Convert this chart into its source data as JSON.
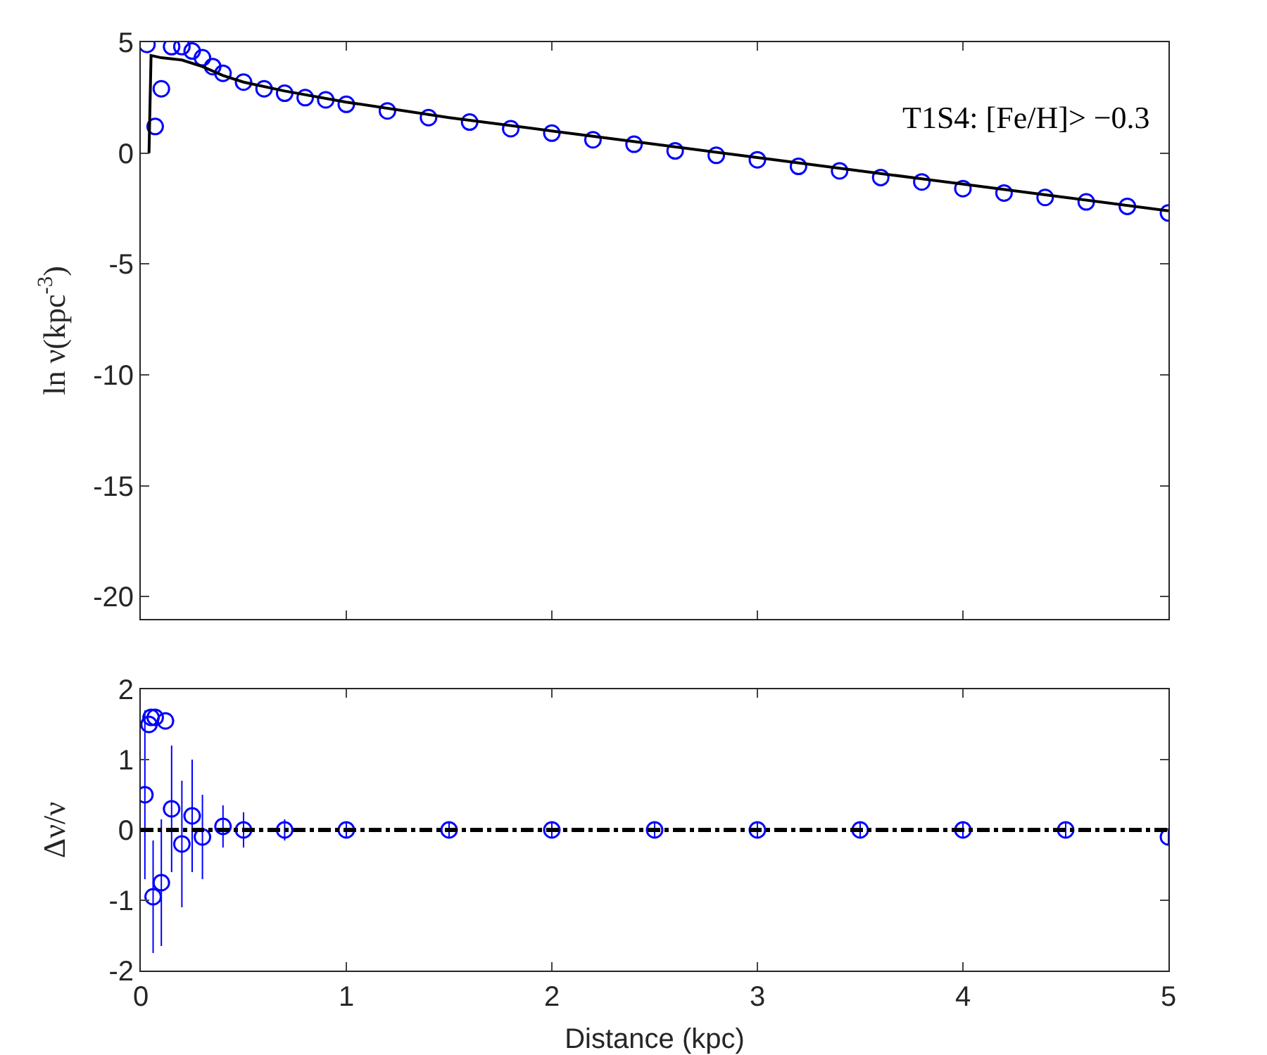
{
  "chart_data": [
    {
      "type": "scatter",
      "ylabel": "ln ν(kpc$^{-3}$)",
      "annotations": [
        "T1S4: [Fe/H]> −0.3"
      ],
      "xlim": [
        0,
        5
      ],
      "xticks": [
        0,
        1,
        2,
        3,
        4,
        5
      ],
      "ylim": [
        -21,
        5
      ],
      "yticks": [
        -20,
        -15,
        -10,
        -5,
        0,
        5
      ],
      "tick_labels": "y",
      "marker": "circle",
      "series": [
        {
          "color": "#0000ff",
          "x": [
            0.03,
            0.07,
            0.1,
            0.15,
            0.2,
            0.25,
            0.3,
            0.35,
            0.4,
            0.5,
            0.6,
            0.7,
            0.8,
            0.9,
            1.0,
            1.2,
            1.4,
            1.6,
            1.8,
            2.0,
            2.2,
            2.4,
            2.6,
            2.8,
            3.0,
            3.2,
            3.4,
            3.6,
            3.8,
            4.0,
            4.2,
            4.4,
            4.6,
            4.8,
            5.0
          ],
          "values": [
            4.9,
            1.2,
            2.9,
            4.8,
            4.8,
            4.6,
            4.3,
            3.9,
            3.6,
            3.2,
            2.9,
            2.7,
            2.5,
            2.4,
            2.2,
            1.9,
            1.6,
            1.4,
            1.1,
            0.9,
            0.6,
            0.4,
            0.1,
            -0.1,
            -0.3,
            -0.6,
            -0.8,
            -1.1,
            -1.3,
            -1.6,
            -1.8,
            -2.0,
            -2.2,
            -2.4,
            -2.7
          ]
        },
        {
          "type": "line",
          "color": "#000000",
          "line_style": "solid",
          "marker": "none",
          "x": [
            0.04,
            0.05,
            0.1,
            0.2,
            0.3,
            0.4,
            0.5,
            0.7,
            1.0,
            1.5,
            2.0,
            2.5,
            3.0,
            3.5,
            4.0,
            4.5,
            5.0
          ],
          "values": [
            0,
            4.4,
            4.3,
            4.2,
            3.9,
            3.5,
            3.2,
            2.8,
            2.3,
            1.6,
            1.0,
            0.4,
            -0.2,
            -0.8,
            -1.4,
            -2.0,
            -2.6
          ]
        }
      ]
    },
    {
      "type": "scatter",
      "xlabel": "Distance (kpc)",
      "ylabel": "Δν/ν",
      "xlim": [
        0,
        5
      ],
      "xticks": [
        0,
        1,
        2,
        3,
        4,
        5
      ],
      "ylim": [
        -2,
        2
      ],
      "yticks": [
        -2,
        -1,
        0,
        1,
        2
      ],
      "marker": "circle",
      "series": [
        {
          "color": "#0000ff",
          "x": [
            0.02,
            0.04,
            0.05,
            0.06,
            0.07,
            0.1,
            0.12,
            0.15,
            0.2,
            0.25,
            0.3,
            0.4,
            0.5,
            0.7,
            1.0,
            1.5,
            2.0,
            2.5,
            3.0,
            3.5,
            4.0,
            4.5,
            5.0
          ],
          "values": [
            0.5,
            1.5,
            1.6,
            -0.95,
            1.6,
            -0.75,
            1.55,
            0.3,
            -0.2,
            0.2,
            -0.1,
            0.05,
            0,
            0,
            0,
            0,
            0,
            0,
            0,
            0,
            0,
            0,
            -0.1
          ],
          "errors": [
            1.2,
            null,
            null,
            0.8,
            null,
            0.9,
            null,
            0.9,
            0.9,
            0.8,
            0.6,
            0.3,
            0.25,
            0.15,
            0.12,
            0.1,
            0.1,
            0.1,
            0.1,
            0.1,
            0.1,
            0.1,
            0.1
          ]
        }
      ],
      "ref_lines": [
        {
          "axis": "y",
          "value": 0,
          "color": "#000000",
          "line_style": "dashed"
        }
      ]
    }
  ]
}
